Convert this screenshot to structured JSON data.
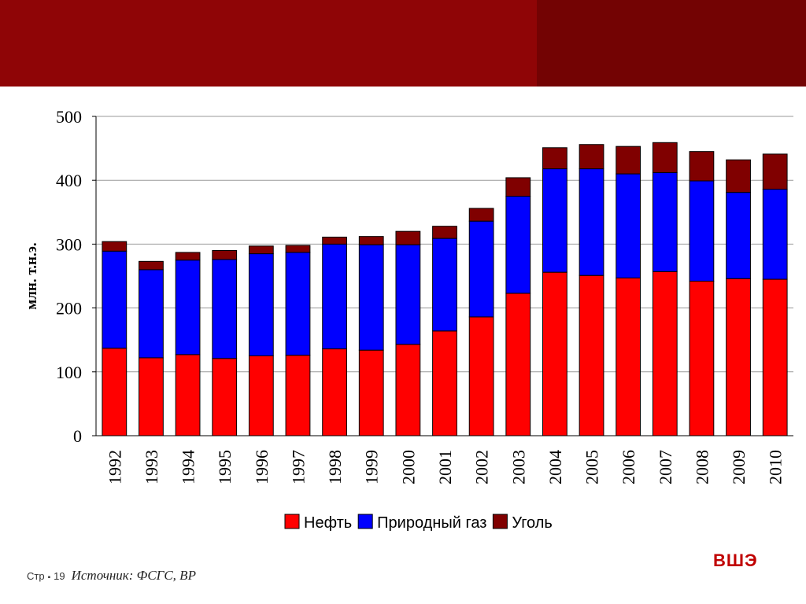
{
  "slide": {
    "page_label": "Стр",
    "page_bullet": "▪",
    "page_number": "19",
    "source": "Источник: ФСГС, BP",
    "brand": "ВШЭ",
    "colors": {
      "header": "#8f0506",
      "header_dark": "#730303",
      "brand": "#c00000"
    }
  },
  "chart_data": {
    "type": "bar",
    "stacked": true,
    "ylabel": "млн. т.н.э.",
    "ylim": [
      0,
      500
    ],
    "yticks": [
      0,
      100,
      200,
      300,
      400,
      500
    ],
    "grid": true,
    "legend_position": "bottom",
    "categories": [
      "1992",
      "1993",
      "1994",
      "1995",
      "1996",
      "1997",
      "1998",
      "1999",
      "2000",
      "2001",
      "2002",
      "2003",
      "2004",
      "2005",
      "2006",
      "2007",
      "2008",
      "2009",
      "2010"
    ],
    "series": [
      {
        "name": "Нефть",
        "color": "#ff0000",
        "values": [
          137,
          122,
          127,
          121,
          125,
          126,
          136,
          134,
          143,
          164,
          186,
          223,
          256,
          251,
          247,
          257,
          242,
          246,
          245
        ]
      },
      {
        "name": "Природный газ",
        "color": "#0000ff",
        "values": [
          152,
          138,
          148,
          155,
          160,
          161,
          164,
          165,
          156,
          145,
          150,
          152,
          162,
          167,
          163,
          155,
          157,
          135,
          141
        ]
      },
      {
        "name": "Уголь",
        "color": "#800000",
        "values": [
          15,
          13,
          12,
          14,
          12,
          11,
          11,
          13,
          21,
          19,
          20,
          29,
          33,
          38,
          43,
          47,
          46,
          51,
          55
        ]
      }
    ]
  }
}
